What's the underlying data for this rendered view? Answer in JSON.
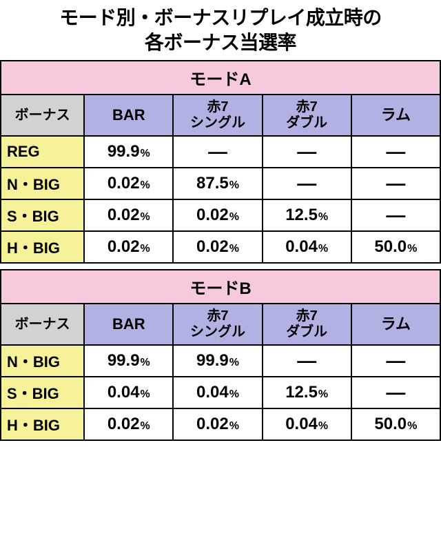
{
  "title_line1": "モード別・ボーナスリプレイ成立時の",
  "title_line2": "各ボーナス当選率",
  "colors": {
    "mode_header_bg": "#f6c9de",
    "col_header_left_bg": "#d2d2d2",
    "col_header_bg": "#b1b1e3",
    "row_label_bg": "#f6f29a",
    "cell_bg": "#ffffff",
    "border": "#000000",
    "text": "#000000"
  },
  "percent_suffix": "%",
  "dash": "―",
  "tables": [
    {
      "mode_label": "モードA",
      "headers": {
        "left": "ボーナス",
        "cols": [
          "BAR",
          "赤7\nシングル",
          "赤7\nダブル",
          "ラム"
        ]
      },
      "rows": [
        {
          "label": "REG",
          "cells": [
            "99.9",
            null,
            null,
            null
          ]
        },
        {
          "label": "N・BIG",
          "cells": [
            "0.02",
            "87.5",
            null,
            null
          ]
        },
        {
          "label": "S・BIG",
          "cells": [
            "0.02",
            "0.02",
            "12.5",
            null
          ]
        },
        {
          "label": "H・BIG",
          "cells": [
            "0.02",
            "0.02",
            "0.04",
            "50.0"
          ]
        }
      ]
    },
    {
      "mode_label": "モードB",
      "headers": {
        "left": "ボーナス",
        "cols": [
          "BAR",
          "赤7\nシングル",
          "赤7\nダブル",
          "ラム"
        ]
      },
      "rows": [
        {
          "label": "N・BIG",
          "cells": [
            "99.9",
            "99.9",
            null,
            null
          ]
        },
        {
          "label": "S・BIG",
          "cells": [
            "0.04",
            "0.04",
            "12.5",
            null
          ]
        },
        {
          "label": "H・BIG",
          "cells": [
            "0.02",
            "0.02",
            "0.04",
            "50.0"
          ]
        }
      ]
    }
  ]
}
